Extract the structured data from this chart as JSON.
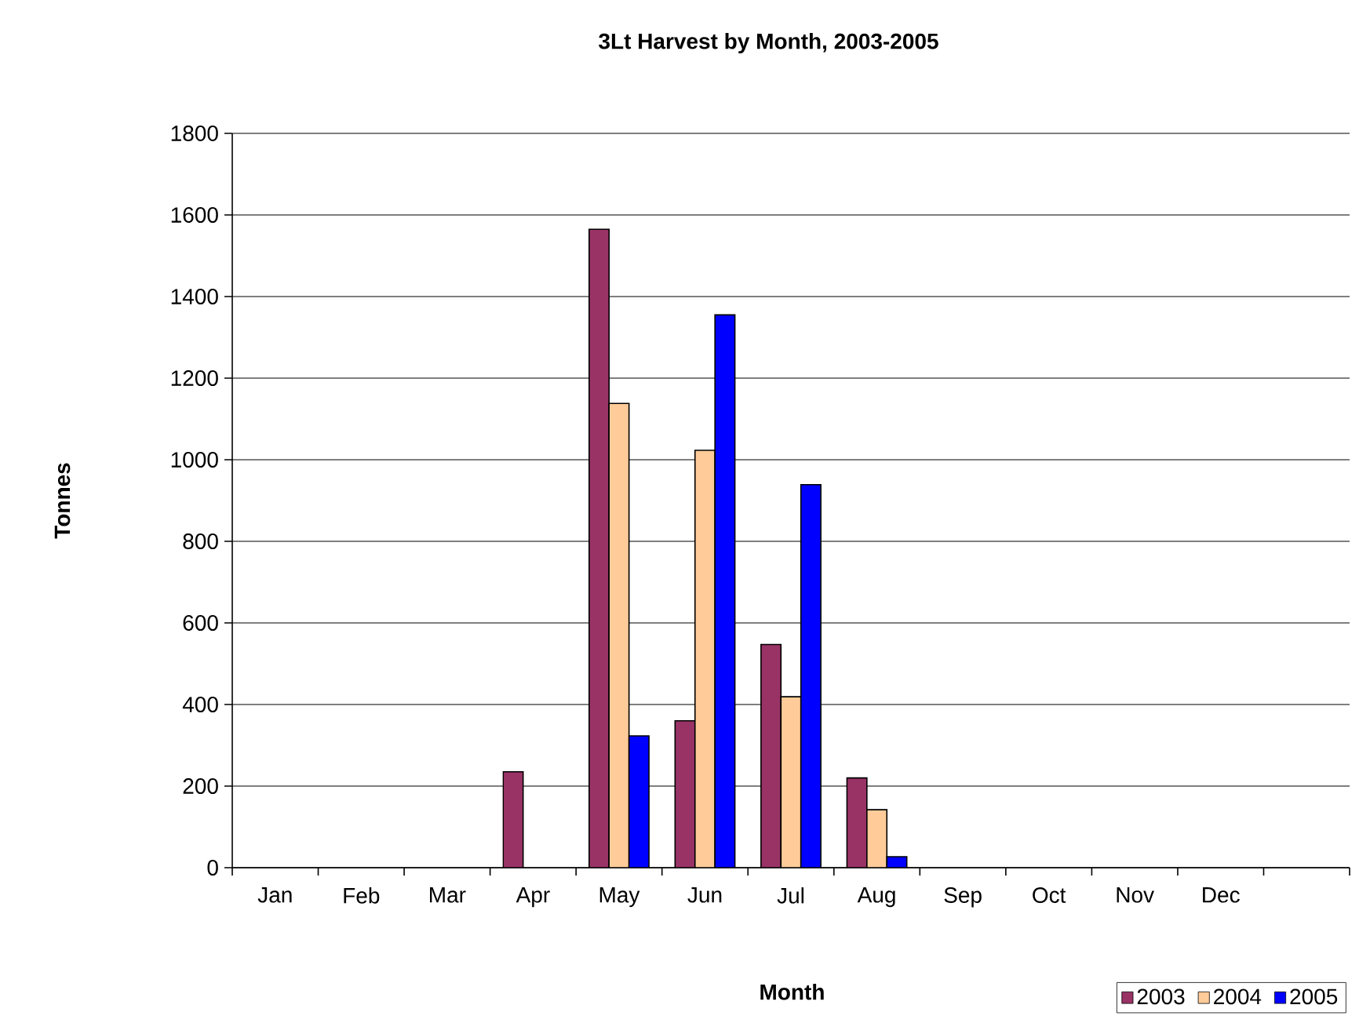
{
  "chart_data": {
    "type": "bar",
    "title": "3Lt Harvest by Month, 2003-2005",
    "xlabel": "Month",
    "ylabel": "Tonnes",
    "categories": [
      "Jan",
      "Feb",
      "Mar",
      "Apr",
      "May",
      "Jun",
      "Jul",
      "Aug",
      "Sep",
      "Oct",
      "Nov",
      "Dec",
      null
    ],
    "series": [
      {
        "name": "2003",
        "color": "#993366",
        "values": [
          null,
          null,
          null,
          235,
          1565,
          360,
          547,
          220,
          null,
          null,
          null,
          null,
          null
        ]
      },
      {
        "name": "2004",
        "color": "#ffcc99",
        "values": [
          null,
          null,
          null,
          null,
          1138,
          1023,
          419,
          142,
          null,
          null,
          null,
          null,
          null
        ]
      },
      {
        "name": "2005",
        "color": "#0000ff",
        "values": [
          null,
          null,
          null,
          null,
          323,
          1355,
          939,
          27,
          null,
          null,
          null,
          null,
          null
        ]
      }
    ],
    "ylim": [
      0,
      1800
    ],
    "yticks": [
      0,
      200,
      400,
      600,
      800,
      1000,
      1200,
      1400,
      1600,
      1800
    ],
    "grid": "y",
    "legend": "bottom right"
  }
}
